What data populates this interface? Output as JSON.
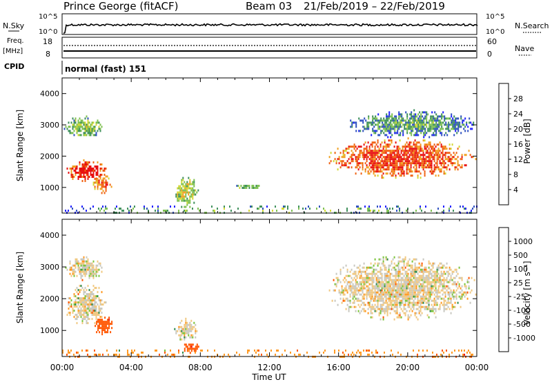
{
  "header": {
    "station": "Prince George (fitACF)",
    "beam": "Beam 03",
    "date_range": "21/Feb/2019 – 22/Feb/2019"
  },
  "top_panels": {
    "nsky": {
      "label": "N.Sky",
      "tick_hi": "10^5",
      "tick_lo": "10^0"
    },
    "nsearch": {
      "label": "N.Search",
      "tick_hi": "10^5",
      "tick_lo": "10^0"
    },
    "freq": {
      "label_line1": "Freq.",
      "label_line2": "[MHz]",
      "tick_hi": "18",
      "tick_lo": "8"
    },
    "nave": {
      "label": "Nave",
      "tick_hi": "60",
      "tick_lo": "0"
    },
    "cpid": {
      "label": "CPID",
      "value": "normal (fast) 151"
    }
  },
  "colors": {
    "power": [
      "#1e1eff",
      "#2d4fc0",
      "#3d8f5a",
      "#7ec050",
      "#d4d830",
      "#f0a020",
      "#f06010",
      "#e81010"
    ],
    "velocity": [
      "#ee1111",
      "#ff5500",
      "#ff9922",
      "#f0c880",
      "#c8c8c0",
      "#7cc43a",
      "#2d8a4e",
      "#2f7ac4",
      "#2233bb"
    ]
  },
  "chart_data": [
    {
      "type": "heatmap",
      "name": "power",
      "xlabel": "",
      "ylabel": "Slant Range [km]",
      "ylim": [
        180,
        4500
      ],
      "x_ticks": [
        "00:00",
        "04:00",
        "08:00",
        "12:00",
        "16:00",
        "20:00",
        "00:00"
      ],
      "y_ticks": [
        "1000",
        "2000",
        "3000",
        "4000"
      ],
      "colorbar": {
        "label": "Power [dB]",
        "ticks": [
          "4",
          "8",
          "12",
          "16",
          "20",
          "24",
          "28"
        ],
        "range": [
          0,
          30
        ]
      },
      "regions": [
        {
          "t": [
            0.1,
            2.6
          ],
          "r": [
            1200,
            1900
          ],
          "value": 26
        },
        {
          "t": [
            0.1,
            2.4
          ],
          "r": [
            2600,
            3300
          ],
          "value": 12
        },
        {
          "t": [
            1.7,
            2.9
          ],
          "r": [
            800,
            1450
          ],
          "value": 22
        },
        {
          "t": [
            6.4,
            7.9
          ],
          "r": [
            350,
            1400
          ],
          "value": 14
        },
        {
          "t": [
            10.0,
            11.5
          ],
          "r": [
            950,
            1150
          ],
          "value": 12
        },
        {
          "t": [
            15.2,
            24.0
          ],
          "r": [
            1300,
            2600
          ],
          "value": 24
        },
        {
          "t": [
            16.5,
            24.0
          ],
          "r": [
            2600,
            3500
          ],
          "value": 8
        },
        {
          "t": [
            0.0,
            24.0
          ],
          "r": [
            180,
            420
          ],
          "value": 10
        }
      ]
    },
    {
      "type": "heatmap",
      "name": "velocity",
      "xlabel": "Time UT",
      "ylabel": "Slant Range [km]",
      "ylim": [
        180,
        4500
      ],
      "x_ticks": [
        "00:00",
        "04:00",
        "08:00",
        "12:00",
        "16:00",
        "20:00",
        "00:00"
      ],
      "y_ticks": [
        "1000",
        "2000",
        "3000",
        "4000"
      ],
      "colorbar": {
        "label": "Velocity [m s⁻¹]",
        "ticks": [
          "1000",
          "500",
          "100",
          "25",
          "-25",
          "-100",
          "-500",
          "-1000"
        ],
        "range": [
          -1000,
          1000
        ]
      },
      "regions": [
        {
          "t": [
            0.1,
            2.6
          ],
          "r": [
            1200,
            2500
          ],
          "value": 0
        },
        {
          "t": [
            0.1,
            2.4
          ],
          "r": [
            2600,
            3400
          ],
          "value": 0
        },
        {
          "t": [
            1.8,
            2.9
          ],
          "r": [
            850,
            1500
          ],
          "value": -300
        },
        {
          "t": [
            6.4,
            7.9
          ],
          "r": [
            700,
            1400
          ],
          "value": 0
        },
        {
          "t": [
            6.9,
            8.0
          ],
          "r": [
            300,
            650
          ],
          "value": -400
        },
        {
          "t": [
            15.2,
            24.0
          ],
          "r": [
            1300,
            3400
          ],
          "value": 0
        },
        {
          "t": [
            0.0,
            24.0
          ],
          "r": [
            180,
            400
          ],
          "value": -80
        }
      ]
    }
  ],
  "axis": {
    "time_label": "Time UT",
    "x_ticks": [
      "00:00",
      "04:00",
      "08:00",
      "12:00",
      "16:00",
      "20:00",
      "00:00"
    ]
  }
}
